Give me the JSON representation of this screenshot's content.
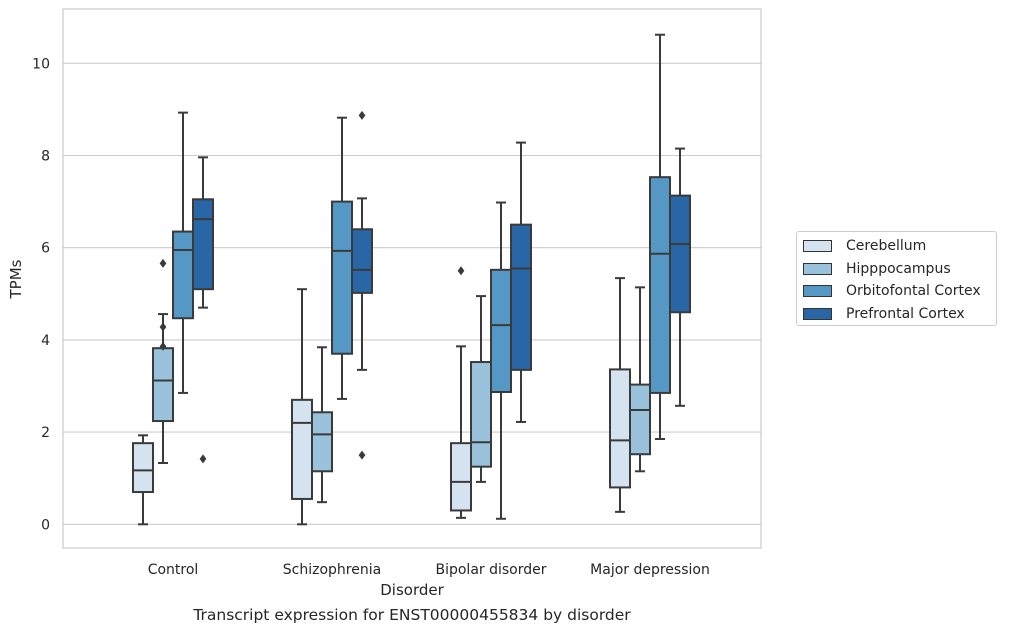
{
  "chart_data": {
    "type": "box",
    "title": "",
    "caption": "Transcript expression for ENST00000455834 by disorder",
    "xlabel": "Disorder",
    "ylabel": "TPMs",
    "ylim": [
      -0.5,
      11.2
    ],
    "yticks": [
      0,
      2,
      4,
      6,
      8,
      10
    ],
    "grid": true,
    "legend_position": "right",
    "categories": [
      "Control",
      "Schizophrenia",
      "Bipolar disorder",
      "Major depression"
    ],
    "series": [
      {
        "name": "Cerebellum",
        "color": "#d5e3f1",
        "boxes": [
          {
            "whislo": 0.0,
            "q1": 0.7,
            "med": 1.17,
            "q3": 1.76,
            "whishi": 1.93,
            "fliers": []
          },
          {
            "whislo": 0.0,
            "q1": 0.55,
            "med": 2.2,
            "q3": 2.7,
            "whishi": 5.1,
            "fliers": []
          },
          {
            "whislo": 0.14,
            "q1": 0.3,
            "med": 0.92,
            "q3": 1.76,
            "whishi": 3.86,
            "fliers": [
              5.5
            ]
          },
          {
            "whislo": 0.27,
            "q1": 0.8,
            "med": 1.82,
            "q3": 3.36,
            "whishi": 5.34,
            "fliers": []
          }
        ]
      },
      {
        "name": "Hipppocampus",
        "color": "#9ac2dd",
        "boxes": [
          {
            "whislo": 1.33,
            "q1": 2.24,
            "med": 3.12,
            "q3": 3.82,
            "whishi": 4.56,
            "fliers": [
              5.66,
              4.28,
              3.86
            ]
          },
          {
            "whislo": 0.48,
            "q1": 1.15,
            "med": 1.95,
            "q3": 2.43,
            "whishi": 3.84,
            "fliers": []
          },
          {
            "whislo": 0.92,
            "q1": 1.25,
            "med": 1.78,
            "q3": 3.52,
            "whishi": 4.95,
            "fliers": []
          },
          {
            "whislo": 1.15,
            "q1": 1.52,
            "med": 2.48,
            "q3": 3.03,
            "whishi": 5.14,
            "fliers": []
          }
        ]
      },
      {
        "name": "Orbitofontal Cortex",
        "color": "#5598c5",
        "boxes": [
          {
            "whislo": 2.85,
            "q1": 4.47,
            "med": 5.95,
            "q3": 6.35,
            "whishi": 8.93,
            "fliers": []
          },
          {
            "whislo": 2.72,
            "q1": 3.7,
            "med": 5.93,
            "q3": 7.0,
            "whishi": 8.82,
            "fliers": []
          },
          {
            "whislo": 0.12,
            "q1": 2.87,
            "med": 4.32,
            "q3": 5.52,
            "whishi": 6.98,
            "fliers": []
          },
          {
            "whislo": 1.85,
            "q1": 2.85,
            "med": 5.87,
            "q3": 7.53,
            "whishi": 10.62,
            "fliers": []
          }
        ]
      },
      {
        "name": "Prefrontal Cortex",
        "color": "#2866a6",
        "boxes": [
          {
            "whislo": 4.7,
            "q1": 5.1,
            "med": 6.62,
            "q3": 7.05,
            "whishi": 7.96,
            "fliers": [
              1.42
            ]
          },
          {
            "whislo": 3.35,
            "q1": 5.02,
            "med": 5.52,
            "q3": 6.4,
            "whishi": 7.07,
            "fliers": [
              8.87,
              1.5
            ]
          },
          {
            "whislo": 2.22,
            "q1": 3.35,
            "med": 5.55,
            "q3": 6.5,
            "whishi": 8.28,
            "fliers": []
          },
          {
            "whislo": 2.57,
            "q1": 4.6,
            "med": 6.08,
            "q3": 7.13,
            "whishi": 8.15,
            "fliers": []
          }
        ]
      }
    ]
  }
}
